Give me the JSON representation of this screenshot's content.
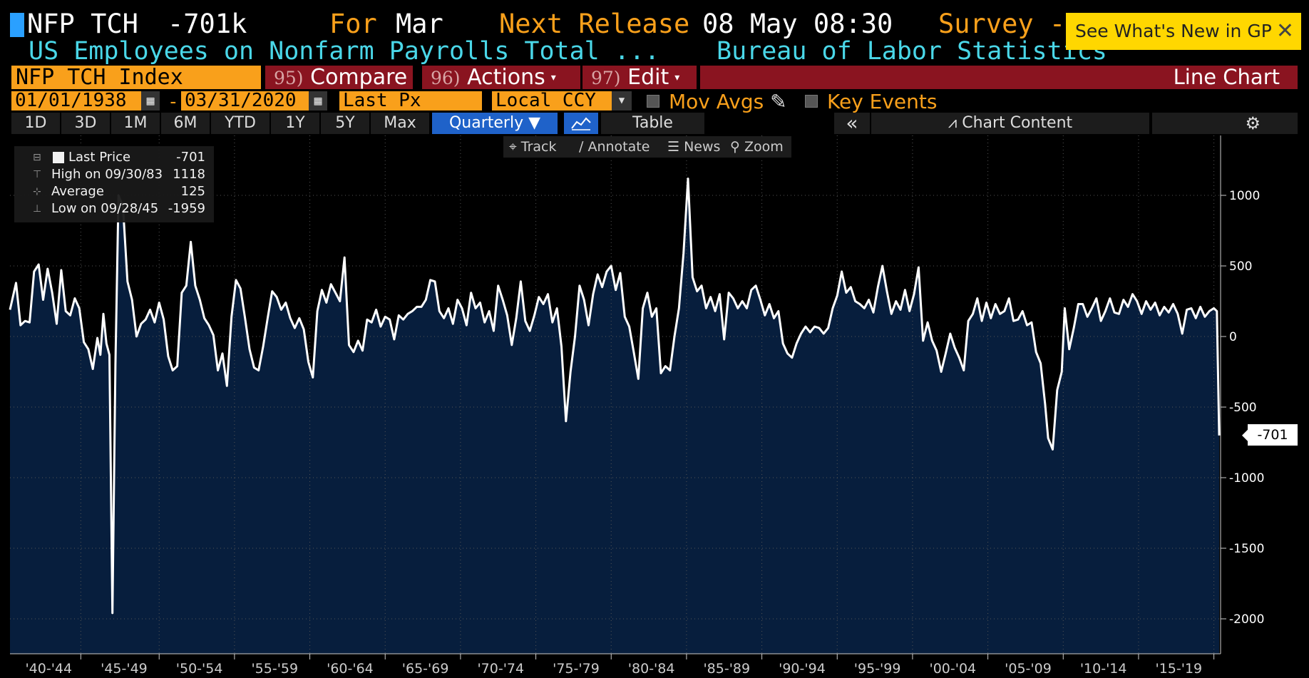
{
  "header": {
    "ticker": "NFP TCH",
    "change": "-701k",
    "for_label": "For",
    "for_value": "Mar",
    "next_release_label": "Next Release",
    "next_release_value": "08 May 08:30",
    "survey_label": "Survey -",
    "subtitle": "US Employees on Nonfarm Payrolls Total ...",
    "source": "Bureau of Labor Statistics"
  },
  "notice": {
    "text": "See What's New in GP",
    "close": "✕"
  },
  "toolbar": {
    "security": "NFP TCH Index",
    "compare_num": "95)",
    "compare_label": "Compare",
    "actions_num": "96)",
    "actions_label": "Actions",
    "edit_num": "97)",
    "edit_label": "Edit",
    "chart_type": "Line Chart"
  },
  "range": {
    "start_date": "01/01/1938",
    "end_date": "03/31/2020",
    "dash": "-",
    "px": "Last Px",
    "ccy": "Local CCY",
    "mov_avgs": "Mov Avgs",
    "key_events": "Key Events"
  },
  "periods": {
    "p1d": "1D",
    "p3d": "3D",
    "p1m": "1M",
    "p6m": "6M",
    "pytd": "YTD",
    "p1y": "1Y",
    "p5y": "5Y",
    "pmax": "Max",
    "quarterly": "Quarterly ▼",
    "table": "Table",
    "collapse": "«",
    "chart_content": "Chart Content",
    "gear": "⚙"
  },
  "mini_toolbar": {
    "track": "Track",
    "annotate": "Annotate",
    "news": "News",
    "zoom": "Zoom"
  },
  "legend": {
    "last_label": "Last Price",
    "last_value": "-701",
    "high_label": "High on 09/30/83",
    "high_value": "1118",
    "avg_label": "Average",
    "avg_value": "125",
    "low_label": "Low on 09/28/45",
    "low_value": "-1959"
  },
  "last_tag": "-701",
  "colors": {
    "accent": "#f9a01b",
    "cyan": "#4ad7e8",
    "fill": "#071e3d",
    "line": "#ffffff",
    "red": "#8a1420"
  },
  "chart_data": {
    "type": "area",
    "x_range": [
      1940,
      2020.25
    ],
    "ylim": [
      -2250,
      1400
    ],
    "y_ticks": [
      1000,
      500,
      0,
      -500,
      -1000,
      -1500,
      -2000
    ],
    "y_tick_labels": [
      "1000",
      "500",
      "0",
      "-500",
      "-1000",
      "-1500",
      "-2000"
    ],
    "x_tick_labels": [
      "'40-'44",
      "'45-'49",
      "'50-'54",
      "'55-'59",
      "'60-'64",
      "'65-'69",
      "'70-'74",
      "'75-'79",
      "'80-'84",
      "'85-'89",
      "'90-'94",
      "'95-'99",
      "'00-'04",
      "'05-'09",
      "'10-'14",
      "'15-'19"
    ],
    "x_tick_years": [
      1942,
      1947,
      1952,
      1957,
      1962,
      1967,
      1972,
      1977,
      1982,
      1987,
      1992,
      1997,
      2002,
      2007,
      2012,
      2017
    ],
    "series": [
      {
        "points": [
          [
            1940.0,
            190
          ],
          [
            1940.4,
            380
          ],
          [
            1940.7,
            80
          ],
          [
            1941.0,
            110
          ],
          [
            1941.3,
            100
          ],
          [
            1941.6,
            460
          ],
          [
            1941.9,
            510
          ],
          [
            1942.2,
            260
          ],
          [
            1942.5,
            480
          ],
          [
            1942.8,
            310
          ],
          [
            1943.1,
            90
          ],
          [
            1943.4,
            470
          ],
          [
            1943.7,
            180
          ],
          [
            1944.0,
            150
          ],
          [
            1944.3,
            270
          ],
          [
            1944.6,
            200
          ],
          [
            1944.9,
            -40
          ],
          [
            1945.2,
            -90
          ],
          [
            1945.5,
            -230
          ],
          [
            1945.8,
            -10
          ],
          [
            1946.0,
            -130
          ],
          [
            1946.2,
            160
          ],
          [
            1946.4,
            -50
          ],
          [
            1946.6,
            -130
          ],
          [
            1946.8,
            -1959
          ],
          [
            1947.0,
            -200
          ],
          [
            1947.2,
            1000
          ],
          [
            1947.5,
            920
          ],
          [
            1947.8,
            390
          ],
          [
            1948.1,
            260
          ],
          [
            1948.4,
            0
          ],
          [
            1948.7,
            90
          ],
          [
            1949.0,
            120
          ],
          [
            1949.3,
            190
          ],
          [
            1949.6,
            100
          ],
          [
            1949.9,
            240
          ],
          [
            1950.2,
            120
          ],
          [
            1950.5,
            -140
          ],
          [
            1950.8,
            -240
          ],
          [
            1951.1,
            -210
          ],
          [
            1951.4,
            310
          ],
          [
            1951.7,
            360
          ],
          [
            1952.0,
            670
          ],
          [
            1952.3,
            360
          ],
          [
            1952.6,
            260
          ],
          [
            1952.9,
            130
          ],
          [
            1953.2,
            80
          ],
          [
            1953.5,
            10
          ],
          [
            1953.8,
            -240
          ],
          [
            1954.1,
            -120
          ],
          [
            1954.4,
            -350
          ],
          [
            1954.7,
            140
          ],
          [
            1955.0,
            400
          ],
          [
            1955.3,
            340
          ],
          [
            1955.6,
            130
          ],
          [
            1955.9,
            -90
          ],
          [
            1956.2,
            -220
          ],
          [
            1956.5,
            -240
          ],
          [
            1956.8,
            -70
          ],
          [
            1957.1,
            130
          ],
          [
            1957.4,
            320
          ],
          [
            1957.7,
            280
          ],
          [
            1958.0,
            190
          ],
          [
            1958.3,
            240
          ],
          [
            1958.6,
            130
          ],
          [
            1958.9,
            60
          ],
          [
            1959.2,
            130
          ],
          [
            1959.5,
            50
          ],
          [
            1959.8,
            -180
          ],
          [
            1960.1,
            -290
          ],
          [
            1960.4,
            180
          ],
          [
            1960.7,
            330
          ],
          [
            1961.0,
            240
          ],
          [
            1961.3,
            370
          ],
          [
            1961.6,
            310
          ],
          [
            1961.9,
            250
          ],
          [
            1962.2,
            560
          ],
          [
            1962.5,
            -60
          ],
          [
            1962.8,
            -110
          ],
          [
            1963.1,
            -30
          ],
          [
            1963.4,
            -100
          ],
          [
            1963.7,
            120
          ],
          [
            1964.0,
            100
          ],
          [
            1964.3,
            190
          ],
          [
            1964.6,
            70
          ],
          [
            1964.9,
            140
          ],
          [
            1965.2,
            120
          ],
          [
            1965.5,
            -20
          ],
          [
            1965.8,
            150
          ],
          [
            1966.1,
            120
          ],
          [
            1966.4,
            160
          ],
          [
            1966.7,
            180
          ],
          [
            1967.0,
            210
          ],
          [
            1967.3,
            210
          ],
          [
            1967.6,
            260
          ],
          [
            1967.9,
            400
          ],
          [
            1968.2,
            390
          ],
          [
            1968.5,
            180
          ],
          [
            1968.8,
            130
          ],
          [
            1969.1,
            200
          ],
          [
            1969.4,
            90
          ],
          [
            1969.7,
            260
          ],
          [
            1970.0,
            200
          ],
          [
            1970.3,
            80
          ],
          [
            1970.6,
            310
          ],
          [
            1970.9,
            200
          ],
          [
            1971.2,
            240
          ],
          [
            1971.5,
            100
          ],
          [
            1971.8,
            180
          ],
          [
            1972.1,
            40
          ],
          [
            1972.4,
            360
          ],
          [
            1972.7,
            260
          ],
          [
            1973.0,
            150
          ],
          [
            1973.3,
            -60
          ],
          [
            1973.6,
            130
          ],
          [
            1973.9,
            390
          ],
          [
            1974.2,
            110
          ],
          [
            1974.5,
            40
          ],
          [
            1974.8,
            150
          ],
          [
            1975.1,
            280
          ],
          [
            1975.4,
            230
          ],
          [
            1975.7,
            300
          ],
          [
            1976.0,
            100
          ],
          [
            1976.3,
            200
          ],
          [
            1976.6,
            -70
          ],
          [
            1976.9,
            -600
          ],
          [
            1977.2,
            -250
          ],
          [
            1977.5,
            0
          ],
          [
            1977.8,
            360
          ],
          [
            1978.1,
            260
          ],
          [
            1978.4,
            80
          ],
          [
            1978.7,
            300
          ],
          [
            1979.0,
            440
          ],
          [
            1979.3,
            350
          ],
          [
            1979.6,
            460
          ],
          [
            1979.9,
            500
          ],
          [
            1980.2,
            330
          ],
          [
            1980.5,
            450
          ],
          [
            1980.8,
            140
          ],
          [
            1981.1,
            70
          ],
          [
            1981.4,
            -110
          ],
          [
            1981.7,
            -300
          ],
          [
            1982.0,
            200
          ],
          [
            1982.3,
            310
          ],
          [
            1982.6,
            140
          ],
          [
            1982.9,
            200
          ],
          [
            1983.2,
            -260
          ],
          [
            1983.5,
            -210
          ],
          [
            1983.8,
            -240
          ],
          [
            1984.1,
            0
          ],
          [
            1984.4,
            200
          ],
          [
            1984.7,
            590
          ],
          [
            1985.0,
            1118
          ],
          [
            1985.3,
            420
          ],
          [
            1985.6,
            320
          ],
          [
            1985.9,
            360
          ],
          [
            1986.2,
            200
          ],
          [
            1986.5,
            280
          ],
          [
            1986.8,
            180
          ],
          [
            1987.1,
            300
          ],
          [
            1987.4,
            -20
          ],
          [
            1987.7,
            310
          ],
          [
            1988.0,
            270
          ],
          [
            1988.3,
            200
          ],
          [
            1988.6,
            250
          ],
          [
            1988.9,
            200
          ],
          [
            1989.2,
            330
          ],
          [
            1989.5,
            360
          ],
          [
            1989.8,
            260
          ],
          [
            1990.1,
            150
          ],
          [
            1990.4,
            230
          ],
          [
            1990.7,
            130
          ],
          [
            1991.0,
            180
          ],
          [
            1991.3,
            -50
          ],
          [
            1991.6,
            -120
          ],
          [
            1991.9,
            -150
          ],
          [
            1992.2,
            -50
          ],
          [
            1992.5,
            20
          ],
          [
            1992.8,
            70
          ],
          [
            1993.1,
            30
          ],
          [
            1993.4,
            70
          ],
          [
            1993.7,
            60
          ],
          [
            1994.0,
            20
          ],
          [
            1994.3,
            60
          ],
          [
            1994.6,
            200
          ],
          [
            1994.9,
            290
          ],
          [
            1995.2,
            460
          ],
          [
            1995.5,
            310
          ],
          [
            1995.8,
            350
          ],
          [
            1996.1,
            250
          ],
          [
            1996.4,
            230
          ],
          [
            1996.7,
            200
          ],
          [
            1997.0,
            260
          ],
          [
            1997.3,
            170
          ],
          [
            1997.6,
            350
          ],
          [
            1997.9,
            500
          ],
          [
            1998.2,
            320
          ],
          [
            1998.5,
            160
          ],
          [
            1998.8,
            250
          ],
          [
            1999.1,
            190
          ],
          [
            1999.4,
            330
          ],
          [
            1999.7,
            180
          ],
          [
            2000.0,
            300
          ],
          [
            2000.3,
            490
          ],
          [
            2000.6,
            -30
          ],
          [
            2000.9,
            100
          ],
          [
            2001.2,
            -30
          ],
          [
            2001.5,
            -100
          ],
          [
            2001.8,
            -250
          ],
          [
            2002.1,
            -120
          ],
          [
            2002.4,
            20
          ],
          [
            2002.7,
            -80
          ],
          [
            2003.0,
            -150
          ],
          [
            2003.3,
            -240
          ],
          [
            2003.6,
            110
          ],
          [
            2003.9,
            160
          ],
          [
            2004.2,
            270
          ],
          [
            2004.5,
            110
          ],
          [
            2004.8,
            240
          ],
          [
            2005.1,
            130
          ],
          [
            2005.4,
            230
          ],
          [
            2005.7,
            160
          ],
          [
            2006.0,
            180
          ],
          [
            2006.3,
            270
          ],
          [
            2006.6,
            110
          ],
          [
            2006.9,
            120
          ],
          [
            2007.2,
            180
          ],
          [
            2007.5,
            80
          ],
          [
            2007.8,
            100
          ],
          [
            2008.1,
            -110
          ],
          [
            2008.4,
            -190
          ],
          [
            2008.7,
            -480
          ],
          [
            2008.9,
            -720
          ],
          [
            2009.2,
            -800
          ],
          [
            2009.5,
            -380
          ],
          [
            2009.8,
            -250
          ],
          [
            2010.0,
            200
          ],
          [
            2010.3,
            -90
          ],
          [
            2010.6,
            60
          ],
          [
            2010.9,
            230
          ],
          [
            2011.2,
            230
          ],
          [
            2011.5,
            140
          ],
          [
            2011.8,
            200
          ],
          [
            2012.1,
            270
          ],
          [
            2012.4,
            110
          ],
          [
            2012.7,
            180
          ],
          [
            2013.0,
            270
          ],
          [
            2013.3,
            170
          ],
          [
            2013.6,
            160
          ],
          [
            2013.9,
            260
          ],
          [
            2014.2,
            210
          ],
          [
            2014.5,
            300
          ],
          [
            2014.8,
            250
          ],
          [
            2015.1,
            160
          ],
          [
            2015.4,
            250
          ],
          [
            2015.7,
            190
          ],
          [
            2016.0,
            240
          ],
          [
            2016.3,
            150
          ],
          [
            2016.6,
            210
          ],
          [
            2016.9,
            170
          ],
          [
            2017.2,
            230
          ],
          [
            2017.5,
            160
          ],
          [
            2017.8,
            20
          ],
          [
            2018.1,
            190
          ],
          [
            2018.4,
            200
          ],
          [
            2018.7,
            130
          ],
          [
            2019.0,
            210
          ],
          [
            2019.3,
            140
          ],
          [
            2019.6,
            180
          ],
          [
            2019.9,
            200
          ],
          [
            2020.1,
            180
          ],
          [
            2020.25,
            -701
          ]
        ]
      }
    ]
  }
}
